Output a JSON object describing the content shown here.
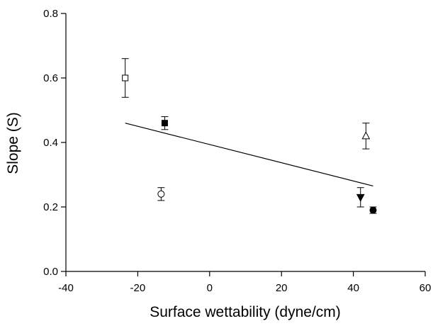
{
  "chart_data": {
    "type": "scatter",
    "title": "",
    "xlabel": "Surface wettability (dyne/cm)",
    "ylabel": "Slope (S)",
    "xlim": [
      -40,
      60
    ],
    "ylim": [
      0.0,
      0.8
    ],
    "xticks": [
      -40,
      -20,
      0,
      20,
      40,
      60
    ],
    "yticks": [
      0.0,
      0.2,
      0.4,
      0.6,
      0.8
    ],
    "xtick_labels": [
      "-40",
      "-20",
      "0",
      "20",
      "40",
      "60"
    ],
    "ytick_labels": [
      "0.0",
      "0.2",
      "0.4",
      "0.6",
      "0.8"
    ],
    "grid": false,
    "legend": "none",
    "points": [
      {
        "x": -23.5,
        "y": 0.6,
        "err": 0.06,
        "marker": "square-open"
      },
      {
        "x": -12.5,
        "y": 0.46,
        "err": 0.02,
        "marker": "square-filled"
      },
      {
        "x": -13.5,
        "y": 0.24,
        "err": 0.02,
        "marker": "circle-open"
      },
      {
        "x": 43.5,
        "y": 0.42,
        "err": 0.04,
        "marker": "triangle-up-open"
      },
      {
        "x": 42.0,
        "y": 0.23,
        "err": 0.03,
        "marker": "triangle-down-filled"
      },
      {
        "x": 45.5,
        "y": 0.19,
        "err": 0.01,
        "marker": "circle-filled"
      }
    ],
    "regression_line": {
      "x": [
        -23.5,
        45.5
      ],
      "y": [
        0.46,
        0.265
      ]
    },
    "colors": {
      "marker": "#000000",
      "axis": "#000000",
      "background": "#ffffff"
    }
  }
}
